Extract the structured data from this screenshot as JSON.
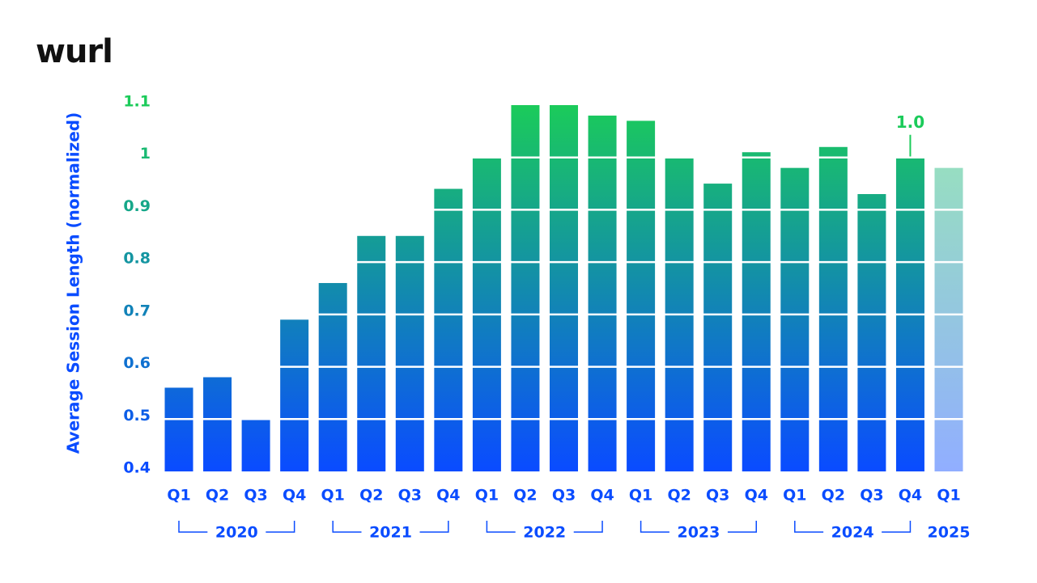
{
  "logo": "wurl",
  "chart_data": {
    "type": "bar",
    "y_label": "Average Session Length (normalized)",
    "categories": [
      "Q1",
      "Q2",
      "Q3",
      "Q4",
      "Q1",
      "Q2",
      "Q3",
      "Q4",
      "Q1",
      "Q2",
      "Q3",
      "Q4",
      "Q1",
      "Q2",
      "Q3",
      "Q4",
      "Q1",
      "Q2",
      "Q3",
      "Q4",
      "Q1"
    ],
    "years": [
      "2020",
      "2021",
      "2022",
      "2023",
      "2024",
      "2025"
    ],
    "values": [
      0.56,
      0.58,
      0.5,
      0.69,
      0.76,
      0.85,
      0.85,
      0.94,
      1.0,
      1.1,
      1.1,
      1.08,
      1.07,
      1.0,
      0.95,
      1.01,
      0.98,
      1.02,
      0.93,
      1.0,
      0.98
    ],
    "value_labels": [
      null,
      null,
      null,
      null,
      null,
      null,
      null,
      null,
      null,
      null,
      null,
      null,
      null,
      null,
      null,
      null,
      null,
      null,
      null,
      "1.0",
      null
    ],
    "colors": [
      "#0a4cff",
      "#1bcb5a"
    ],
    "faded": [
      20
    ],
    "ylim": [
      0.4,
      1.1
    ],
    "yticks": [
      0.4,
      0.5,
      0.6,
      0.7,
      0.8,
      0.9,
      1.0,
      1.1
    ],
    "grid": true
  }
}
